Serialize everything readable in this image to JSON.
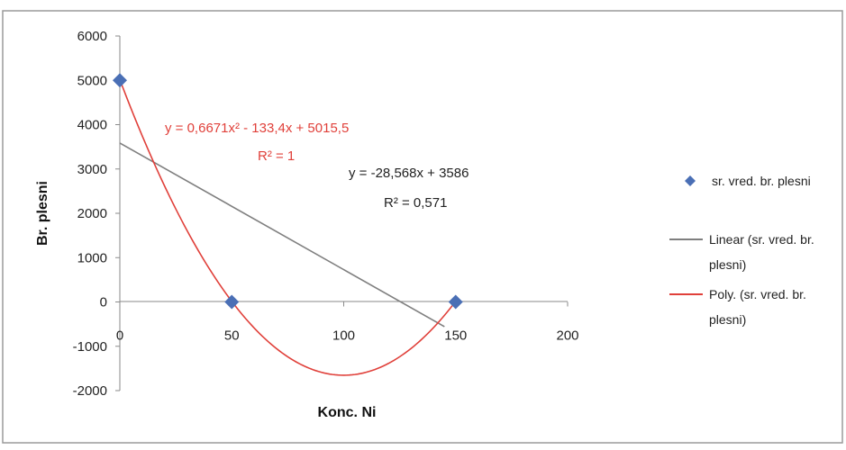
{
  "chart_data": {
    "type": "scatter",
    "xlabel": "Konc. Ni",
    "ylabel": "Br. plesni",
    "xlim": [
      0,
      200
    ],
    "ylim": [
      -2000,
      6000
    ],
    "x_ticks": [
      "0",
      "50",
      "100",
      "150",
      "200"
    ],
    "y_ticks": [
      "6000",
      "5000",
      "4000",
      "3000",
      "2000",
      "1000",
      "0",
      "-1000",
      "-2000"
    ],
    "x_tick_values": [
      0,
      50,
      100,
      150,
      200
    ],
    "y_tick_values": [
      6000,
      5000,
      4000,
      3000,
      2000,
      1000,
      0,
      -1000,
      -2000
    ],
    "grid": false,
    "legend_position": "right",
    "series": [
      {
        "name": "sr. vred. br. plesni",
        "kind": "markers",
        "marker": "diamond",
        "color": "#4a6fb5",
        "x": [
          0,
          50,
          150
        ],
        "y": [
          5000,
          0,
          0
        ]
      }
    ],
    "trendlines": [
      {
        "name": "Linear (sr. vred. br. plesni)",
        "kind": "linear",
        "color": "#7f7f7f",
        "slope": -28.568,
        "intercept": 3586,
        "x_range": [
          0,
          145
        ],
        "equation": "y = -28,568x + 3586",
        "r2": "R² = 0,571"
      },
      {
        "name": "Poly. (sr. vred. br. plesni)",
        "kind": "polynomial",
        "color": "#e0403a",
        "coefficients": [
          0.6671,
          -133.4,
          5015.5
        ],
        "x_range": [
          0,
          150
        ],
        "equation": "y = 0,6671x² - 133,4x + 5015,5",
        "r2": "R² = 1"
      }
    ]
  },
  "legend": {
    "items": [
      {
        "line1": "sr. vred. br. plesni",
        "line2": ""
      },
      {
        "line1": "Linear (sr. vred. br.",
        "line2": "plesni)"
      },
      {
        "line1": "Poly. (sr. vred. br.",
        "line2": "plesni)"
      }
    ]
  }
}
